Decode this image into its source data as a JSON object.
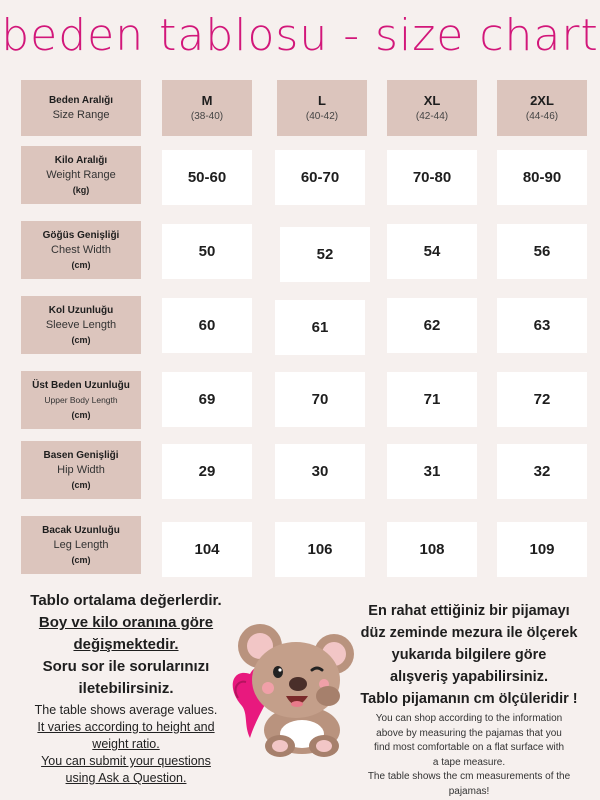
{
  "title": "beden tablosu - size chart",
  "colors": {
    "accent": "#d2177a",
    "label_bg": "#dcc5bd",
    "value_bg": "#ffffff",
    "page_bg": "#f6f0ee"
  },
  "header": {
    "label_tr": "Beden Aralığı",
    "label_en": "Size Range"
  },
  "sizes": [
    {
      "name": "M",
      "range": "(38-40)"
    },
    {
      "name": "L",
      "range": "(40-42)"
    },
    {
      "name": "XL",
      "range": "(42-44)"
    },
    {
      "name": "2XL",
      "range": "(44-46)"
    }
  ],
  "rows": [
    {
      "tr": "Kilo Aralığı",
      "en": "Weight Range",
      "unit": "(kg)",
      "values": [
        "50-60",
        "60-70",
        "70-80",
        "80-90"
      ]
    },
    {
      "tr": "Göğüs Genişliği",
      "en": "Chest Width",
      "unit": "(cm)",
      "values": [
        "50",
        "52",
        "54",
        "56"
      ]
    },
    {
      "tr": "Kol Uzunluğu",
      "en": "Sleeve Length",
      "unit": "(cm)",
      "values": [
        "60",
        "61",
        "62",
        "63"
      ]
    },
    {
      "tr": "Üst Beden Uzunluğu",
      "en": "Upper Body Length",
      "unit": "(cm)",
      "values": [
        "69",
        "70",
        "71",
        "72"
      ]
    },
    {
      "tr": "Basen Genişliği",
      "en": "Hip Width",
      "unit": "(cm)",
      "values": [
        "29",
        "30",
        "31",
        "32"
      ]
    },
    {
      "tr": "Bacak Uzunluğu",
      "en": "Leg Length",
      "unit": "(cm)",
      "values": [
        "104",
        "106",
        "108",
        "109"
      ]
    }
  ],
  "left_note": {
    "line1": "Tablo ortalama değerlerdir.",
    "line2": "Boy ve kilo oranına göre",
    "line3": "değişmektedir.",
    "line4": "Soru sor ile sorularınızı",
    "line5": "iletebilirsiniz.",
    "en1": "The table shows average values.",
    "en2": "It varies according to height and",
    "en3": "weight ratio.",
    "en4": "You can submit your questions",
    "en5": "using Ask a Question."
  },
  "right_note": {
    "line1": "En rahat ettiğiniz bir pijamayı",
    "line2": "düz zeminde mezura ile ölçerek",
    "line3": "yukarıda bilgilere göre",
    "line4": "alışveriş yapabilirsiniz.",
    "line5": "Tablo pijamanın cm ölçüleridir !",
    "en1": "You can shop according to the information",
    "en2": "above by measuring the pajamas that you",
    "en3": "find most comfortable on a flat surface with",
    "en4": "a tape measure.",
    "en5": "The table shows the cm measurements of the",
    "en6": "pajamas!"
  },
  "illustration": {
    "icon": "koala-with-heart-pillow-icon"
  }
}
